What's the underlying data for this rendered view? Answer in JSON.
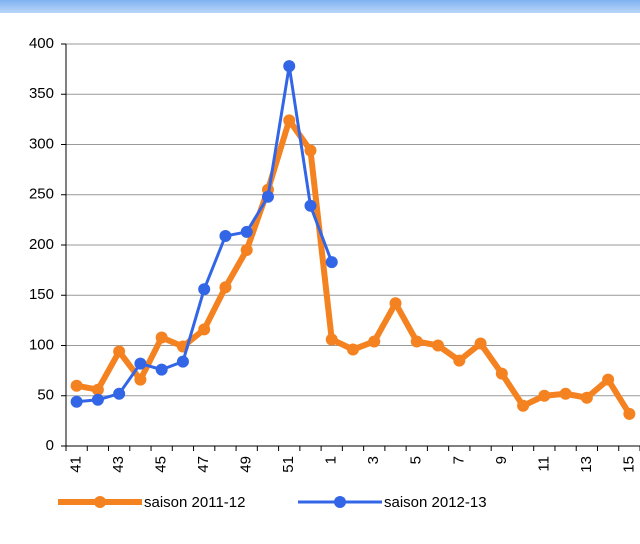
{
  "chart_data": {
    "type": "line",
    "categories": [
      "41",
      null,
      "43",
      null,
      "45",
      null,
      "47",
      null,
      "49",
      null,
      "51",
      null,
      "1",
      null,
      "3",
      null,
      "5",
      null,
      "7",
      null,
      "9",
      null,
      "11",
      null,
      "13",
      null,
      "15"
    ],
    "series": [
      {
        "name": "saison 2011-12",
        "color": "#f58220",
        "values": [
          60,
          56,
          94,
          66,
          108,
          99,
          116,
          158,
          195,
          255,
          324,
          294,
          106,
          96,
          104,
          142,
          104,
          100,
          85,
          102,
          72,
          40,
          50,
          52,
          48,
          66,
          32
        ]
      },
      {
        "name": "saison 2012-13",
        "color": "#3366e6",
        "values": [
          44,
          46,
          52,
          82,
          76,
          84,
          156,
          209,
          213,
          248,
          378,
          239,
          183,
          null,
          null,
          null,
          null,
          null,
          null,
          null,
          null,
          null,
          null,
          null,
          null,
          null,
          null
        ]
      }
    ],
    "ylim": [
      0,
      400
    ],
    "yticks": [
      0,
      50,
      100,
      150,
      200,
      250,
      300,
      350,
      400
    ],
    "grid": true
  }
}
